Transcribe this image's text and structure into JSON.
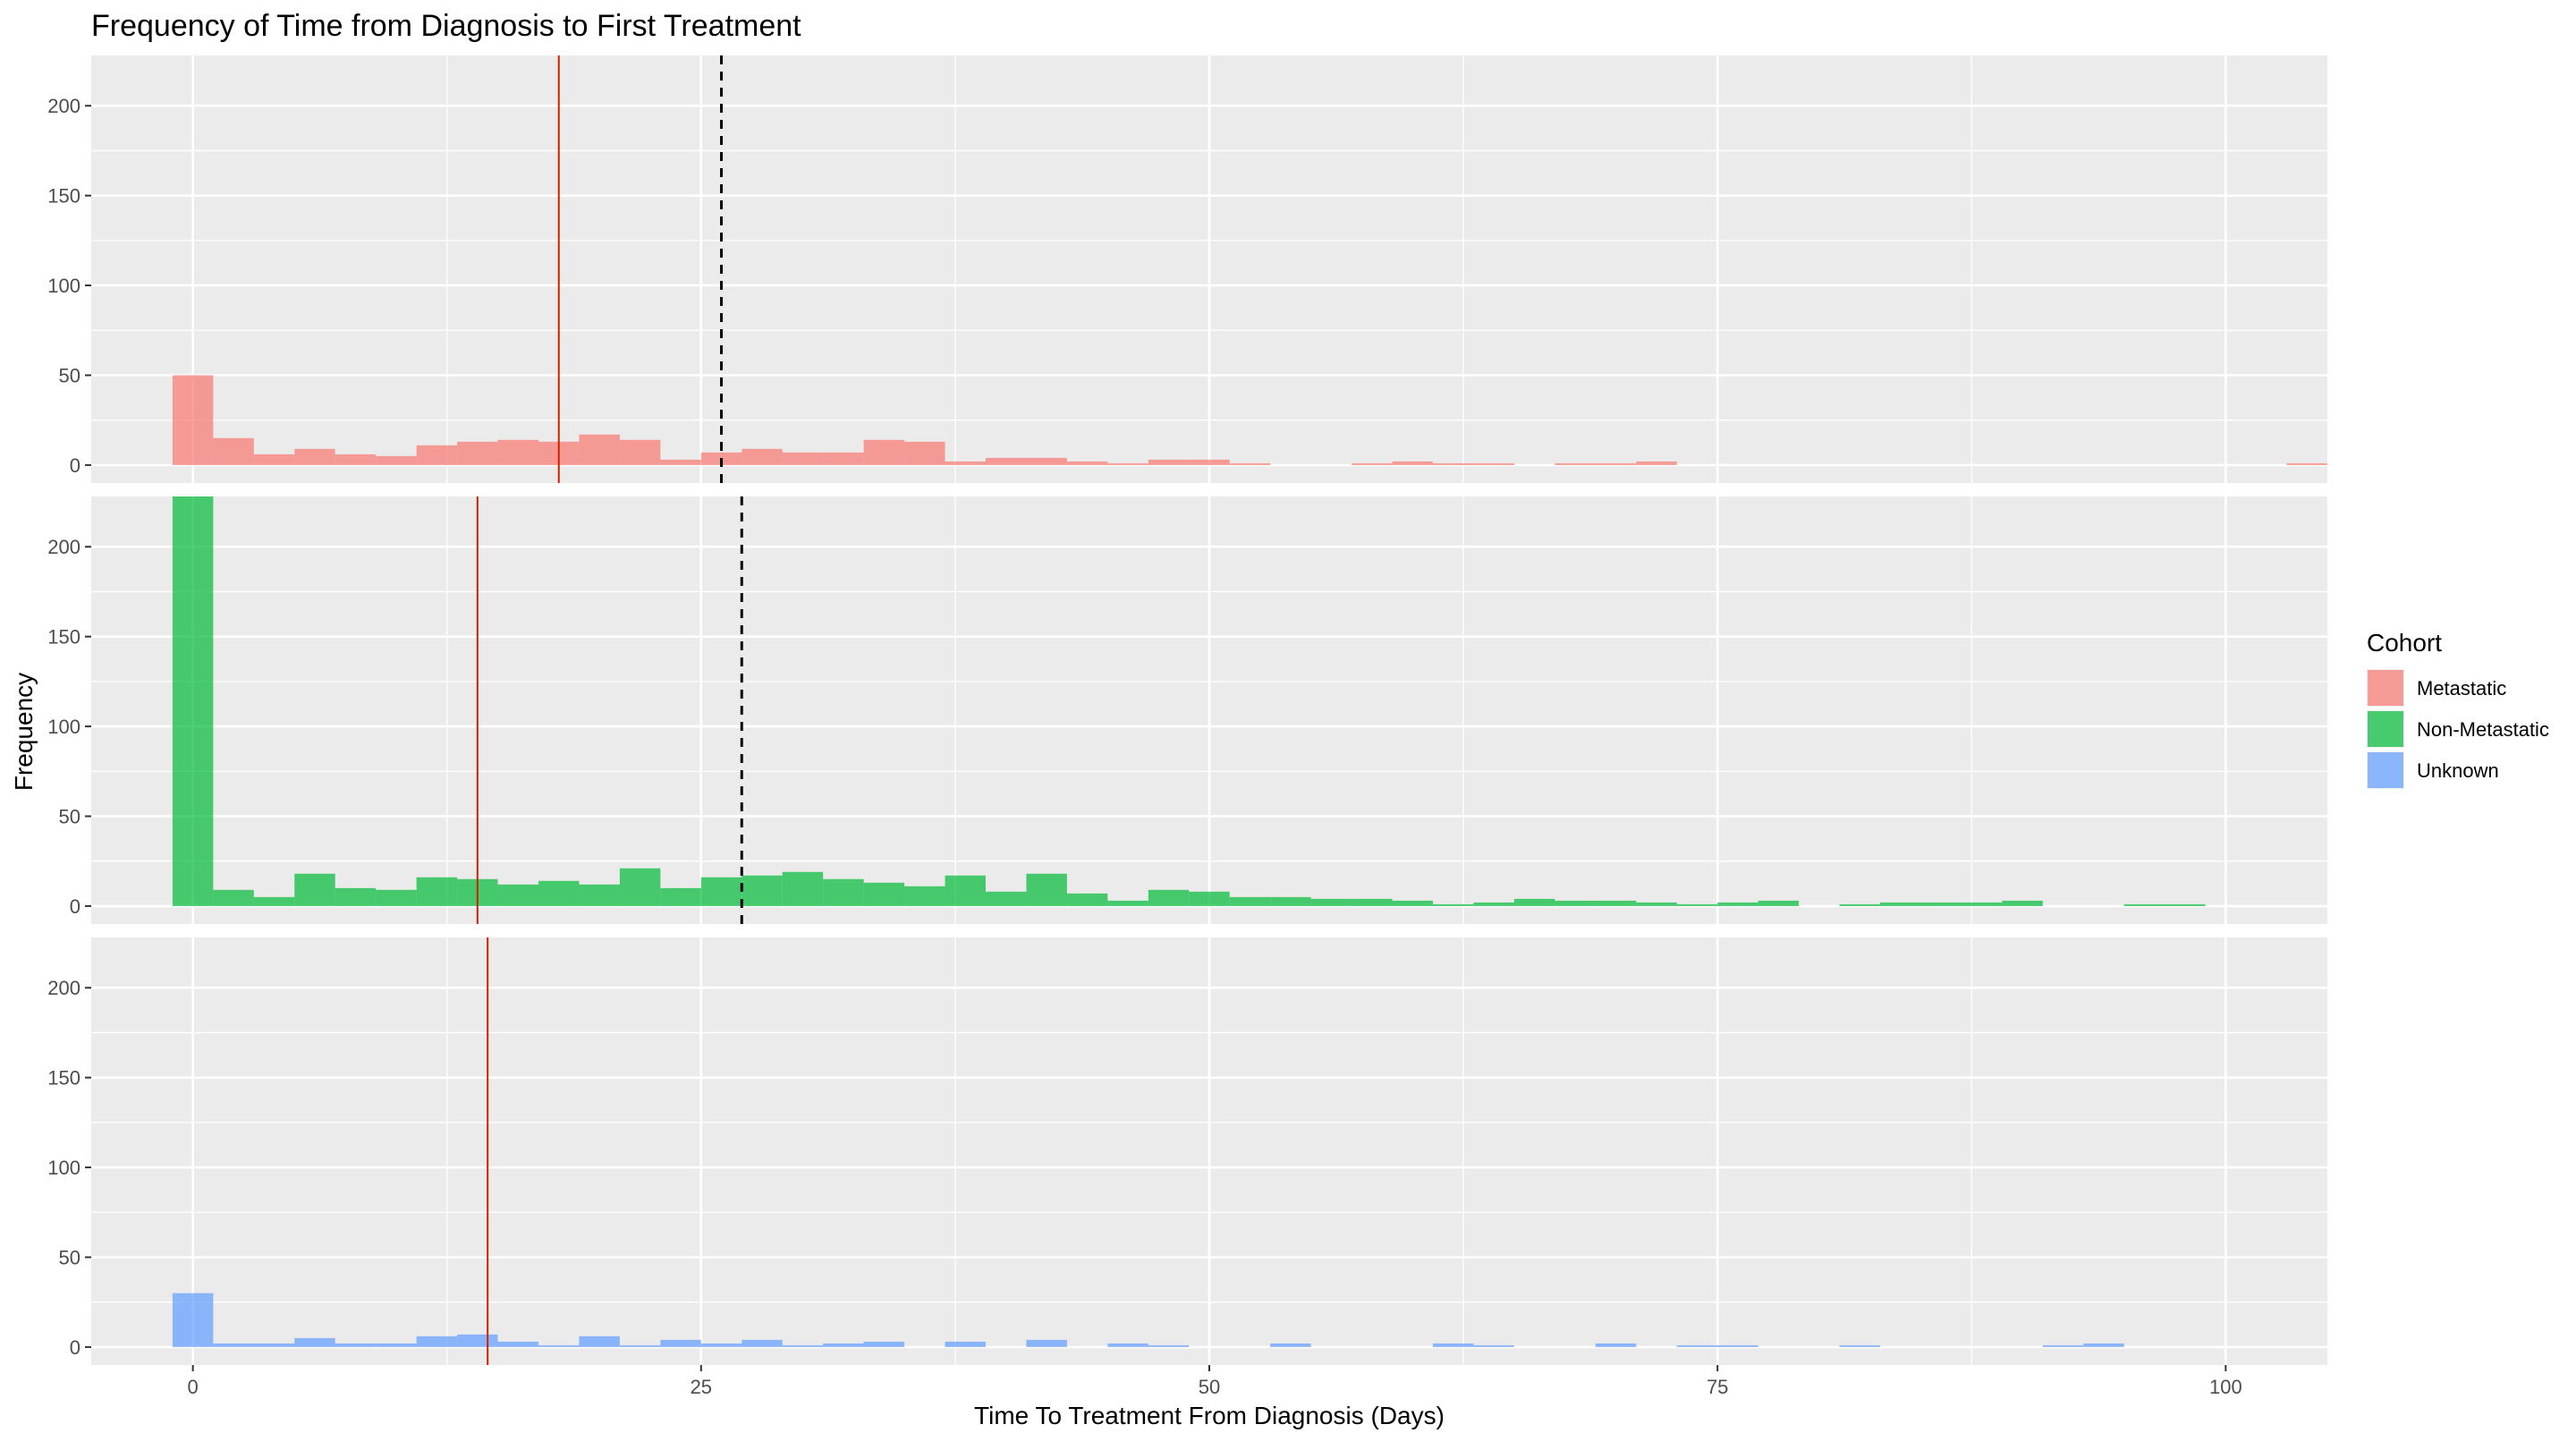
{
  "chart_data": {
    "type": "histogram",
    "title": "Frequency of Time from Diagnosis to First Treatment",
    "xlabel": "Time To Treatment From Diagnosis (Days)",
    "ylabel": "Frequency",
    "xlim": [
      -5,
      105
    ],
    "ylim": [
      -10,
      228
    ],
    "bin_width": 2,
    "x_ticks": [
      0,
      25,
      50,
      75,
      100
    ],
    "y_ticks": [
      0,
      50,
      100,
      150,
      200
    ],
    "grid": true,
    "legend": {
      "title": "Cohort",
      "position": "right",
      "entries": [
        "Metastatic",
        "Non-Metastatic",
        "Unknown"
      ]
    },
    "panels": [
      {
        "name": "Metastatic",
        "color": "#F8766D",
        "median_line": 18,
        "mean_line": 26,
        "bins": [
          [
            0,
            50
          ],
          [
            2,
            15
          ],
          [
            4,
            6
          ],
          [
            6,
            9
          ],
          [
            8,
            6
          ],
          [
            10,
            5
          ],
          [
            12,
            11
          ],
          [
            14,
            13
          ],
          [
            16,
            14
          ],
          [
            18,
            13
          ],
          [
            20,
            17
          ],
          [
            22,
            14
          ],
          [
            24,
            3
          ],
          [
            26,
            7
          ],
          [
            28,
            9
          ],
          [
            30,
            7
          ],
          [
            32,
            7
          ],
          [
            34,
            14
          ],
          [
            36,
            13
          ],
          [
            38,
            2
          ],
          [
            40,
            4
          ],
          [
            42,
            4
          ],
          [
            44,
            2
          ],
          [
            46,
            1
          ],
          [
            48,
            3
          ],
          [
            50,
            3
          ],
          [
            52,
            1
          ],
          [
            58,
            1
          ],
          [
            60,
            2
          ],
          [
            62,
            1
          ],
          [
            64,
            1
          ],
          [
            68,
            1
          ],
          [
            70,
            1
          ],
          [
            72,
            2
          ],
          [
            104,
            1
          ]
        ]
      },
      {
        "name": "Non-Metastatic",
        "color": "#00BA38",
        "median_line": 14,
        "mean_line": 27,
        "bins": [
          [
            0,
            228
          ],
          [
            2,
            9
          ],
          [
            4,
            5
          ],
          [
            6,
            18
          ],
          [
            8,
            10
          ],
          [
            10,
            9
          ],
          [
            12,
            16
          ],
          [
            14,
            15
          ],
          [
            16,
            12
          ],
          [
            18,
            14
          ],
          [
            20,
            12
          ],
          [
            22,
            21
          ],
          [
            24,
            10
          ],
          [
            26,
            16
          ],
          [
            28,
            17
          ],
          [
            30,
            19
          ],
          [
            32,
            15
          ],
          [
            34,
            13
          ],
          [
            36,
            11
          ],
          [
            38,
            17
          ],
          [
            40,
            8
          ],
          [
            42,
            18
          ],
          [
            44,
            7
          ],
          [
            46,
            3
          ],
          [
            48,
            9
          ],
          [
            50,
            8
          ],
          [
            52,
            5
          ],
          [
            54,
            5
          ],
          [
            56,
            4
          ],
          [
            58,
            4
          ],
          [
            60,
            3
          ],
          [
            62,
            1
          ],
          [
            64,
            2
          ],
          [
            66,
            4
          ],
          [
            68,
            3
          ],
          [
            70,
            3
          ],
          [
            72,
            2
          ],
          [
            74,
            1
          ],
          [
            76,
            2
          ],
          [
            78,
            3
          ],
          [
            80,
            0
          ],
          [
            82,
            1
          ],
          [
            84,
            2
          ],
          [
            86,
            2
          ],
          [
            88,
            2
          ],
          [
            90,
            3
          ],
          [
            96,
            1
          ],
          [
            98,
            1
          ]
        ]
      },
      {
        "name": "Unknown",
        "color": "#619CFF",
        "median_line": 14.5,
        "mean_line": null,
        "bins": [
          [
            0,
            30
          ],
          [
            2,
            2
          ],
          [
            4,
            2
          ],
          [
            6,
            5
          ],
          [
            8,
            2
          ],
          [
            10,
            2
          ],
          [
            12,
            6
          ],
          [
            14,
            7
          ],
          [
            16,
            3
          ],
          [
            18,
            1
          ],
          [
            20,
            6
          ],
          [
            22,
            1
          ],
          [
            24,
            4
          ],
          [
            26,
            2
          ],
          [
            28,
            4
          ],
          [
            30,
            1
          ],
          [
            32,
            2
          ],
          [
            34,
            3
          ],
          [
            38,
            3
          ],
          [
            42,
            4
          ],
          [
            46,
            2
          ],
          [
            48,
            1
          ],
          [
            54,
            2
          ],
          [
            62,
            2
          ],
          [
            64,
            1
          ],
          [
            70,
            2
          ],
          [
            74,
            1
          ],
          [
            76,
            1
          ],
          [
            82,
            1
          ],
          [
            92,
            1
          ],
          [
            94,
            2
          ]
        ]
      }
    ]
  }
}
